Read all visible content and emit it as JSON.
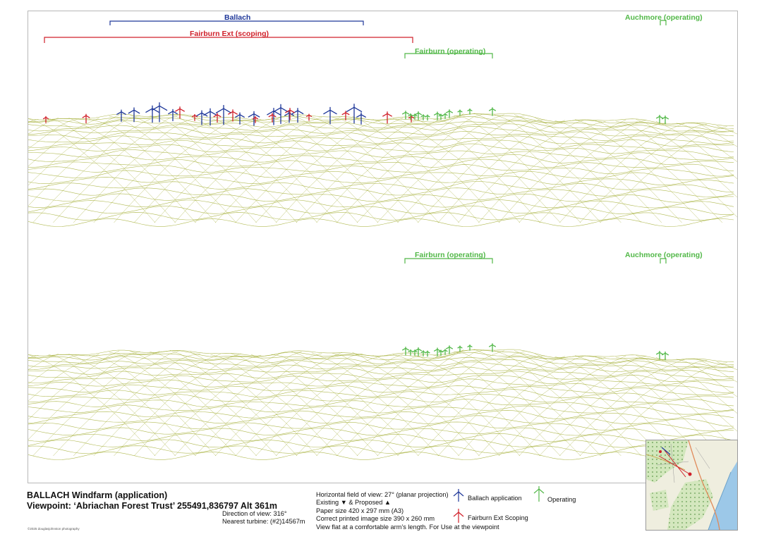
{
  "top_panel": {
    "labels": {
      "ballach": "Ballach",
      "fairburn_ext": "Fairburn Ext (scoping)",
      "fairburn_operating": "Fairburn (operating)",
      "auchmore_operating": "Auchmore (operating)"
    }
  },
  "bottom_panel": {
    "labels": {
      "fairburn_operating": "Fairburn (operating)",
      "auchmore_operating": "Auchmore (operating)"
    }
  },
  "footer": {
    "title": "BALLACH Windfarm (application)",
    "viewpoint": "Viewpoint: ‘Abriachan Forest Trust’ 255491,836797 Alt 361m",
    "direction": "Direction of view: 316°",
    "nearest_turbine": "Nearest turbine: (#2)14567m",
    "hfov": "Horizontal field of view: 27° (planar projection)",
    "existing_proposed": "Existing ▼ & Proposed ▲",
    "paper_size": "Paper size 420 x 297 mm (A3)",
    "image_size": "Correct printed image size 390 x 260 mm",
    "view_note": "View flat at a comfortable arm’s length. For Use at the viewpoint",
    "copyright": "©2025 douglasjohnston photography"
  },
  "legend": {
    "ballach_application": "Ballach application",
    "fairburn_ext_scoping": "Fairburn Ext Scoping",
    "operating": "Operating"
  },
  "colors": {
    "ballach": "#1e3799",
    "fairburn_ext": "#d0202a",
    "operating": "#52b848",
    "terrain": "#a3ae35"
  }
}
